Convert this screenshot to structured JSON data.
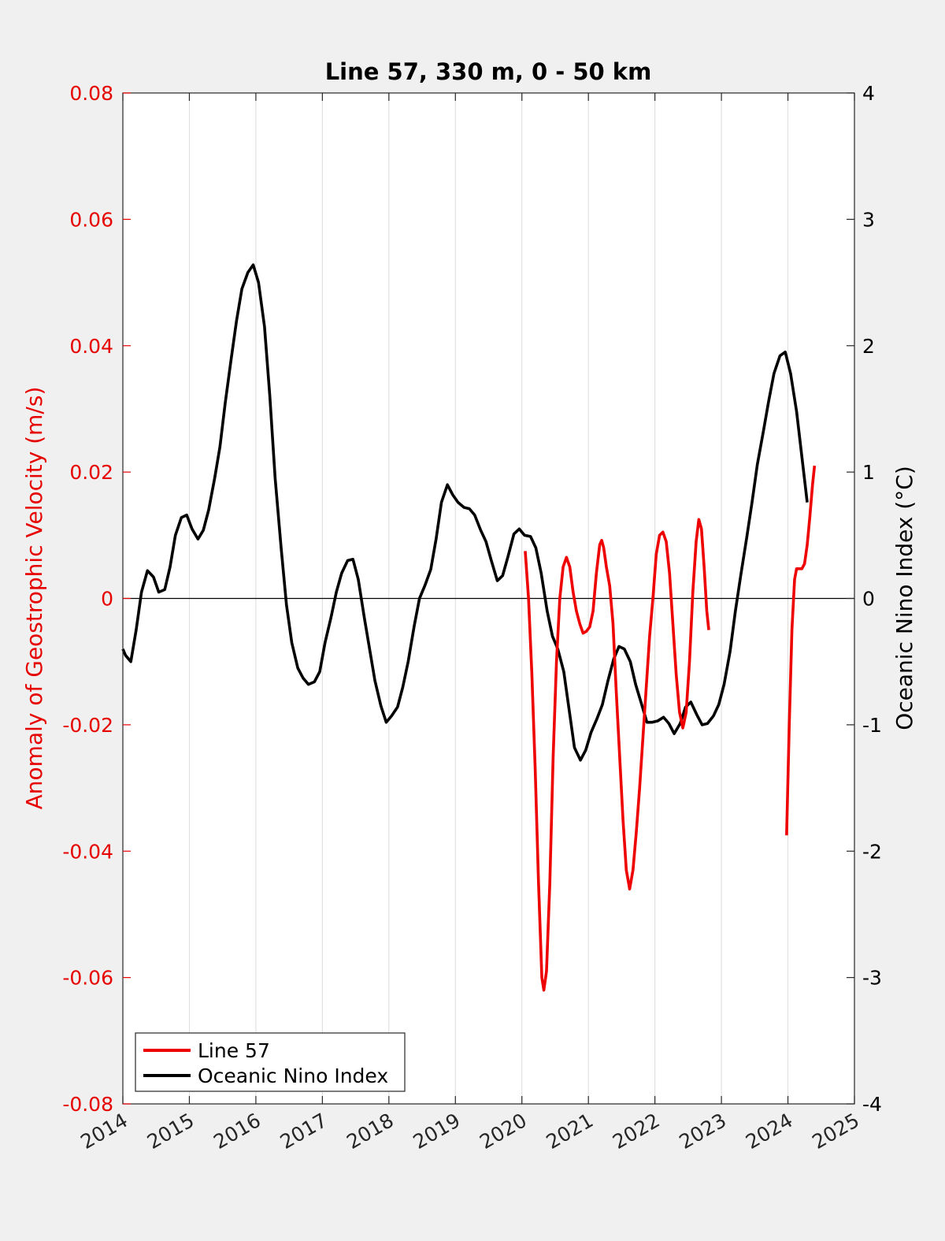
{
  "chart_data": {
    "type": "line",
    "title": "Line 57, 330 m, 0 - 50 km",
    "xlabel": "",
    "ylabel_left": "Anomaly of Geostrophic Velocity (m/s)",
    "ylabel_right": "Oceanic Nino Index (°C)",
    "xlim": [
      2014,
      2025
    ],
    "ylim_left": [
      -0.08,
      0.08
    ],
    "ylim_right": [
      -4,
      4
    ],
    "x_ticks": [
      "2014",
      "2015",
      "2016",
      "2017",
      "2018",
      "2019",
      "2020",
      "2021",
      "2022",
      "2023",
      "2024",
      "2025"
    ],
    "y_left_ticks": [
      "-0.08",
      "-0.06",
      "-0.04",
      "-0.02",
      "0",
      "0.02",
      "0.04",
      "0.06",
      "0.08"
    ],
    "y_right_ticks": [
      "-4",
      "-3",
      "-2",
      "-1",
      "0",
      "1",
      "2",
      "3",
      "4"
    ],
    "grid": "vertical",
    "zero_line": true,
    "legend_position": "bottom-left",
    "series": [
      {
        "name": "Line 57",
        "axis": "left",
        "color": "#ee0000",
        "segments": [
          [
            [
              2020.05,
              0.0075
            ],
            [
              2020.1,
              0.0
            ],
            [
              2020.15,
              -0.012
            ],
            [
              2020.2,
              -0.027
            ],
            [
              2020.25,
              -0.045
            ],
            [
              2020.3,
              -0.06
            ],
            [
              2020.33,
              -0.062
            ],
            [
              2020.37,
              -0.059
            ],
            [
              2020.42,
              -0.045
            ],
            [
              2020.47,
              -0.025
            ],
            [
              2020.52,
              -0.01
            ],
            [
              2020.57,
              0.0
            ],
            [
              2020.62,
              0.005
            ],
            [
              2020.67,
              0.0065
            ],
            [
              2020.72,
              0.005
            ],
            [
              2020.77,
              0.001
            ],
            [
              2020.82,
              -0.002
            ],
            [
              2020.87,
              -0.004
            ],
            [
              2020.92,
              -0.0055
            ],
            [
              2020.97,
              -0.0052
            ],
            [
              2021.02,
              -0.0045
            ],
            [
              2021.07,
              -0.002
            ],
            [
              2021.12,
              0.004
            ],
            [
              2021.17,
              0.0085
            ],
            [
              2021.2,
              0.0092
            ],
            [
              2021.23,
              0.008
            ],
            [
              2021.27,
              0.005
            ],
            [
              2021.32,
              0.002
            ],
            [
              2021.37,
              -0.004
            ],
            [
              2021.42,
              -0.015
            ],
            [
              2021.47,
              -0.025
            ],
            [
              2021.52,
              -0.035
            ],
            [
              2021.57,
              -0.043
            ],
            [
              2021.62,
              -0.046
            ],
            [
              2021.67,
              -0.043
            ],
            [
              2021.72,
              -0.037
            ],
            [
              2021.77,
              -0.03
            ],
            [
              2021.82,
              -0.022
            ],
            [
              2021.87,
              -0.014
            ],
            [
              2021.92,
              -0.006
            ],
            [
              2021.97,
              0.0
            ],
            [
              2022.02,
              0.007
            ],
            [
              2022.07,
              0.01
            ],
            [
              2022.12,
              0.0105
            ],
            [
              2022.17,
              0.009
            ],
            [
              2022.22,
              0.004
            ],
            [
              2022.27,
              -0.004
            ],
            [
              2022.32,
              -0.012
            ],
            [
              2022.37,
              -0.018
            ],
            [
              2022.42,
              -0.0205
            ],
            [
              2022.47,
              -0.018
            ],
            [
              2022.52,
              -0.01
            ],
            [
              2022.57,
              0.001
            ],
            [
              2022.62,
              0.009
            ],
            [
              2022.66,
              0.0125
            ],
            [
              2022.7,
              0.011
            ],
            [
              2022.74,
              0.005
            ],
            [
              2022.78,
              -0.002
            ],
            [
              2022.81,
              -0.005
            ]
          ],
          [
            [
              2023.98,
              -0.0375
            ],
            [
              2024.02,
              -0.02
            ],
            [
              2024.06,
              -0.005
            ],
            [
              2024.1,
              0.003
            ],
            [
              2024.13,
              0.0047
            ],
            [
              2024.17,
              0.0047
            ],
            [
              2024.21,
              0.0047
            ],
            [
              2024.25,
              0.0055
            ],
            [
              2024.29,
              0.0085
            ],
            [
              2024.33,
              0.013
            ],
            [
              2024.37,
              0.018
            ],
            [
              2024.4,
              0.021
            ]
          ]
        ]
      },
      {
        "name": "Oceanic Nino Index",
        "axis": "right",
        "color": "#000000",
        "points": [
          [
            2014.0,
            -0.4
          ],
          [
            2014.04,
            -0.45
          ],
          [
            2014.12,
            -0.5
          ],
          [
            2014.2,
            -0.25
          ],
          [
            2014.28,
            0.05
          ],
          [
            2014.37,
            0.22
          ],
          [
            2014.46,
            0.17
          ],
          [
            2014.54,
            0.05
          ],
          [
            2014.63,
            0.07
          ],
          [
            2014.71,
            0.25
          ],
          [
            2014.79,
            0.5
          ],
          [
            2014.88,
            0.64
          ],
          [
            2014.96,
            0.66
          ],
          [
            2015.04,
            0.55
          ],
          [
            2015.13,
            0.47
          ],
          [
            2015.21,
            0.54
          ],
          [
            2015.29,
            0.7
          ],
          [
            2015.38,
            0.95
          ],
          [
            2015.46,
            1.2
          ],
          [
            2015.54,
            1.55
          ],
          [
            2015.63,
            1.9
          ],
          [
            2015.71,
            2.2
          ],
          [
            2015.79,
            2.45
          ],
          [
            2015.88,
            2.58
          ],
          [
            2015.96,
            2.64
          ],
          [
            2016.04,
            2.5
          ],
          [
            2016.13,
            2.15
          ],
          [
            2016.21,
            1.6
          ],
          [
            2016.29,
            0.95
          ],
          [
            2016.38,
            0.4
          ],
          [
            2016.46,
            -0.05
          ],
          [
            2016.54,
            -0.35
          ],
          [
            2016.63,
            -0.55
          ],
          [
            2016.71,
            -0.63
          ],
          [
            2016.79,
            -0.68
          ],
          [
            2016.88,
            -0.66
          ],
          [
            2016.96,
            -0.58
          ],
          [
            2017.04,
            -0.35
          ],
          [
            2017.13,
            -0.15
          ],
          [
            2017.21,
            0.05
          ],
          [
            2017.29,
            0.2
          ],
          [
            2017.38,
            0.3
          ],
          [
            2017.46,
            0.31
          ],
          [
            2017.54,
            0.15
          ],
          [
            2017.63,
            -0.15
          ],
          [
            2017.71,
            -0.4
          ],
          [
            2017.79,
            -0.65
          ],
          [
            2017.88,
            -0.85
          ],
          [
            2017.96,
            -0.98
          ],
          [
            2018.04,
            -0.93
          ],
          [
            2018.13,
            -0.86
          ],
          [
            2018.21,
            -0.7
          ],
          [
            2018.29,
            -0.5
          ],
          [
            2018.38,
            -0.22
          ],
          [
            2018.46,
            0.0
          ],
          [
            2018.54,
            0.1
          ],
          [
            2018.63,
            0.23
          ],
          [
            2018.71,
            0.47
          ],
          [
            2018.79,
            0.76
          ],
          [
            2018.88,
            0.9
          ],
          [
            2018.96,
            0.82
          ],
          [
            2019.04,
            0.76
          ],
          [
            2019.13,
            0.72
          ],
          [
            2019.21,
            0.71
          ],
          [
            2019.29,
            0.66
          ],
          [
            2019.38,
            0.54
          ],
          [
            2019.46,
            0.45
          ],
          [
            2019.54,
            0.3
          ],
          [
            2019.63,
            0.14
          ],
          [
            2019.71,
            0.18
          ],
          [
            2019.79,
            0.33
          ],
          [
            2019.88,
            0.51
          ],
          [
            2019.96,
            0.55
          ],
          [
            2020.04,
            0.5
          ],
          [
            2020.13,
            0.49
          ],
          [
            2020.21,
            0.4
          ],
          [
            2020.29,
            0.2
          ],
          [
            2020.38,
            -0.1
          ],
          [
            2020.46,
            -0.3
          ],
          [
            2020.54,
            -0.4
          ],
          [
            2020.63,
            -0.58
          ],
          [
            2020.71,
            -0.88
          ],
          [
            2020.79,
            -1.18
          ],
          [
            2020.88,
            -1.28
          ],
          [
            2020.96,
            -1.2
          ],
          [
            2021.04,
            -1.06
          ],
          [
            2021.13,
            -0.95
          ],
          [
            2021.21,
            -0.84
          ],
          [
            2021.29,
            -0.66
          ],
          [
            2021.38,
            -0.48
          ],
          [
            2021.46,
            -0.38
          ],
          [
            2021.54,
            -0.4
          ],
          [
            2021.63,
            -0.5
          ],
          [
            2021.71,
            -0.68
          ],
          [
            2021.79,
            -0.82
          ],
          [
            2021.88,
            -0.98
          ],
          [
            2021.96,
            -0.98
          ],
          [
            2022.04,
            -0.97
          ],
          [
            2022.13,
            -0.94
          ],
          [
            2022.21,
            -0.99
          ],
          [
            2022.29,
            -1.07
          ],
          [
            2022.38,
            -0.99
          ],
          [
            2022.46,
            -0.86
          ],
          [
            2022.54,
            -0.82
          ],
          [
            2022.63,
            -0.92
          ],
          [
            2022.71,
            -1.0
          ],
          [
            2022.79,
            -0.99
          ],
          [
            2022.88,
            -0.93
          ],
          [
            2022.96,
            -0.84
          ],
          [
            2023.04,
            -0.68
          ],
          [
            2023.13,
            -0.42
          ],
          [
            2023.21,
            -0.1
          ],
          [
            2023.29,
            0.18
          ],
          [
            2023.38,
            0.48
          ],
          [
            2023.46,
            0.76
          ],
          [
            2023.54,
            1.06
          ],
          [
            2023.63,
            1.32
          ],
          [
            2023.71,
            1.56
          ],
          [
            2023.79,
            1.78
          ],
          [
            2023.88,
            1.92
          ],
          [
            2023.96,
            1.95
          ],
          [
            2024.04,
            1.78
          ],
          [
            2024.13,
            1.48
          ],
          [
            2024.21,
            1.12
          ],
          [
            2024.29,
            0.76
          ]
        ]
      }
    ]
  },
  "legend": {
    "items": [
      {
        "label": "Line 57",
        "color": "#ee0000"
      },
      {
        "label": "Oceanic Nino Index",
        "color": "#000000"
      }
    ]
  }
}
